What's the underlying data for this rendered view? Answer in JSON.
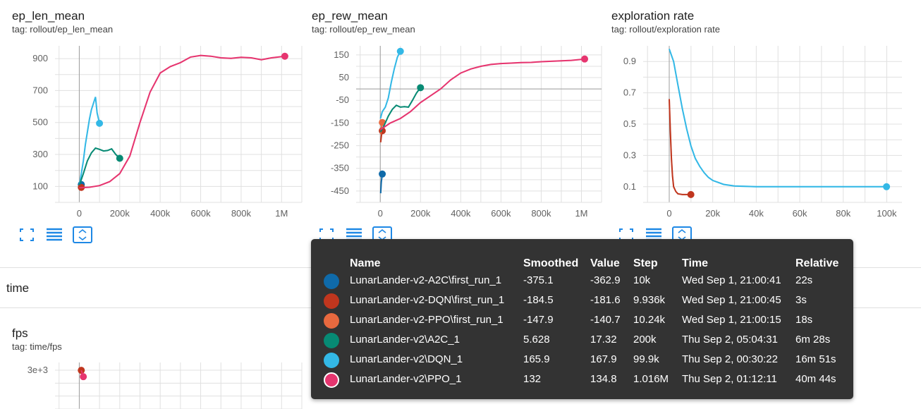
{
  "cards": [
    {
      "title": "ep_len_mean",
      "tag": "tag: rollout/ep_len_mean",
      "y_ticks": [
        "900",
        "700",
        "500",
        "300",
        "100"
      ],
      "x_ticks": [
        "0",
        "200k",
        "400k",
        "600k",
        "800k",
        "1M"
      ]
    },
    {
      "title": "ep_rew_mean",
      "tag": "tag: rollout/ep_rew_mean",
      "y_ticks": [
        "150",
        "50",
        "-50",
        "-150",
        "-250",
        "-350",
        "-450"
      ],
      "x_ticks": [
        "0",
        "200k",
        "400k",
        "600k",
        "800k",
        "1M"
      ]
    },
    {
      "title": "exploration rate",
      "tag": "tag: rollout/exploration rate",
      "y_ticks": [
        "0.9",
        "0.7",
        "0.5",
        "0.3",
        "0.1"
      ],
      "x_ticks": [
        "0",
        "20k",
        "40k",
        "60k",
        "80k",
        "100k"
      ]
    }
  ],
  "sections": {
    "time_label": "time",
    "fps_title": "fps",
    "fps_tag": "tag: time/fps",
    "fps_y_tick": "3e+3"
  },
  "toolbar_icons": [
    "fullscreen-icon",
    "toggle-log-scale-icon",
    "fit-domain-icon"
  ],
  "colors": {
    "A2C_first": "#0f6aa9",
    "DQN_first": "#c0361e",
    "PPO_first": "#e8693f",
    "A2C": "#078a74",
    "DQN": "#33b8e6",
    "PPO": "#e6356f",
    "accent": "#1e88e5"
  },
  "tooltip": {
    "headers": {
      "name": "Name",
      "smoothed": "Smoothed",
      "value": "Value",
      "step": "Step",
      "time": "Time",
      "relative": "Relative"
    },
    "rows": [
      {
        "name": "LunarLander-v2-A2C\\first_run_1",
        "smoothed": "-375.1",
        "value": "-362.9",
        "step": "10k",
        "time": "Wed Sep 1, 21:00:41",
        "relative": "22s",
        "color": "#0f6aa9"
      },
      {
        "name": "LunarLander-v2-DQN\\first_run_1",
        "smoothed": "-184.5",
        "value": "-181.6",
        "step": "9.936k",
        "time": "Wed Sep 1, 21:00:45",
        "relative": "3s",
        "color": "#c0361e"
      },
      {
        "name": "LunarLander-v2-PPO\\first_run_1",
        "smoothed": "-147.9",
        "value": "-140.7",
        "step": "10.24k",
        "time": "Wed Sep 1, 21:00:15",
        "relative": "18s",
        "color": "#e8693f"
      },
      {
        "name": "LunarLander-v2\\A2C_1",
        "smoothed": "5.628",
        "value": "17.32",
        "step": "200k",
        "time": "Thu Sep 2, 05:04:31",
        "relative": "6m 28s",
        "color": "#078a74"
      },
      {
        "name": "LunarLander-v2\\DQN_1",
        "smoothed": "165.9",
        "value": "167.9",
        "step": "99.9k",
        "time": "Thu Sep 2, 00:30:22",
        "relative": "16m 51s",
        "color": "#33b8e6"
      },
      {
        "name": "LunarLander-v2\\PPO_1",
        "smoothed": "132",
        "value": "134.8",
        "step": "1.016M",
        "time": "Thu Sep 2, 01:12:11",
        "relative": "40m 44s",
        "color": "#e6356f",
        "selected": true
      }
    ]
  },
  "chart_data": [
    {
      "type": "line",
      "title": "ep_len_mean",
      "xlim": [
        -120000,
        1100000
      ],
      "ylim": [
        0,
        980
      ],
      "series": [
        {
          "name": "LunarLander-v2-A2C\\first_run_1",
          "color": "#0f6aa9",
          "x": [
            2000,
            6000,
            10000
          ],
          "y": [
            100,
            106,
            112
          ]
        },
        {
          "name": "LunarLander-v2-DQN\\first_run_1",
          "color": "#c0361e",
          "x": [
            3000,
            9936
          ],
          "y": [
            97,
            94
          ]
        },
        {
          "name": "LunarLander-v2\\DQN_1",
          "color": "#33b8e6",
          "x": [
            1000,
            10000,
            20000,
            30000,
            40000,
            50000,
            60000,
            70000,
            80000,
            88000,
            99900
          ],
          "y": [
            110,
            180,
            260,
            360,
            440,
            520,
            580,
            620,
            660,
            560,
            495
          ]
        },
        {
          "name": "LunarLander-v2\\A2C_1",
          "color": "#078a74",
          "x": [
            1000,
            20000,
            40000,
            60000,
            80000,
            100000,
            120000,
            140000,
            160000,
            180000,
            200000
          ],
          "y": [
            110,
            180,
            260,
            310,
            340,
            332,
            322,
            325,
            335,
            300,
            276
          ]
        },
        {
          "name": "LunarLander-v2\\PPO_1",
          "color": "#e6356f",
          "x": [
            0,
            50000,
            100000,
            150000,
            200000,
            250000,
            300000,
            350000,
            400000,
            450000,
            500000,
            550000,
            600000,
            650000,
            700000,
            750000,
            800000,
            850000,
            900000,
            950000,
            1016000
          ],
          "y": [
            92,
            95,
            105,
            130,
            180,
            290,
            500,
            690,
            810,
            850,
            875,
            910,
            920,
            915,
            905,
            902,
            908,
            905,
            893,
            905,
            915
          ]
        }
      ]
    },
    {
      "type": "line",
      "title": "ep_rew_mean",
      "xlim": [
        -120000,
        1100000
      ],
      "ylim": [
        -500,
        190
      ],
      "series": [
        {
          "name": "LunarLander-v2-A2C\\first_run_1",
          "color": "#0f6aa9",
          "x": [
            2000,
            5000,
            10000
          ],
          "y": [
            -460,
            -410,
            -375
          ]
        },
        {
          "name": "LunarLander-v2-DQN\\first_run_1",
          "color": "#c0361e",
          "x": [
            2000,
            6000,
            9936
          ],
          "y": [
            -235,
            -205,
            -184.5
          ]
        },
        {
          "name": "LunarLander-v2-PPO\\first_run_1",
          "color": "#e8693f",
          "x": [
            2000,
            6000,
            10240
          ],
          "y": [
            -200,
            -170,
            -147.9
          ]
        },
        {
          "name": "LunarLander-v2\\DQN_1",
          "color": "#33b8e6",
          "x": [
            1000,
            10000,
            25000,
            40000,
            55000,
            70000,
            85000,
            99900
          ],
          "y": [
            -130,
            -100,
            -80,
            -40,
            30,
            90,
            140,
            165.9
          ]
        },
        {
          "name": "LunarLander-v2\\A2C_1",
          "color": "#078a74",
          "x": [
            1000,
            20000,
            40000,
            60000,
            80000,
            100000,
            120000,
            140000,
            160000,
            180000,
            200000
          ],
          "y": [
            -190,
            -160,
            -120,
            -90,
            -72,
            -80,
            -78,
            -80,
            -50,
            -18,
            5.628
          ]
        },
        {
          "name": "LunarLander-v2\\PPO_1",
          "color": "#e6356f",
          "x": [
            0,
            50000,
            100000,
            150000,
            200000,
            250000,
            300000,
            350000,
            400000,
            450000,
            500000,
            550000,
            600000,
            650000,
            700000,
            750000,
            800000,
            850000,
            900000,
            950000,
            1016000
          ],
          "y": [
            -180,
            -150,
            -130,
            -100,
            -60,
            -30,
            0,
            40,
            70,
            88,
            100,
            108,
            112,
            114,
            116,
            117,
            120,
            122,
            124,
            126,
            132
          ]
        }
      ]
    },
    {
      "type": "line",
      "title": "exploration rate",
      "xlim": [
        -12000,
        107000
      ],
      "ylim": [
        0,
        1.0
      ],
      "series": [
        {
          "name": "LunarLander-v2-DQN\\first_run_1",
          "color": "#c0361e",
          "x": [
            0,
            500,
            1000,
            1500,
            2000,
            3000,
            4000,
            6000,
            8000,
            9936
          ],
          "y": [
            0.66,
            0.45,
            0.28,
            0.17,
            0.1,
            0.07,
            0.055,
            0.05,
            0.05,
            0.05
          ]
        },
        {
          "name": "LunarLander-v2\\DQN_1",
          "color": "#33b8e6",
          "x": [
            0,
            2000,
            4000,
            6000,
            8000,
            10000,
            12000,
            14000,
            16000,
            18000,
            20000,
            25000,
            30000,
            40000,
            60000,
            80000,
            99900
          ],
          "y": [
            0.98,
            0.9,
            0.75,
            0.6,
            0.47,
            0.36,
            0.28,
            0.23,
            0.19,
            0.16,
            0.14,
            0.115,
            0.105,
            0.1,
            0.1,
            0.1,
            0.1
          ]
        }
      ]
    },
    {
      "type": "line",
      "title": "fps",
      "xlim": [
        -120000,
        1100000
      ],
      "ylim": [
        0,
        3600
      ],
      "series": [
        {
          "name": "LunarLander-v2-DQN\\first_run_1",
          "color": "#c0361e",
          "x": [
            9936
          ],
          "y": [
            2990
          ]
        },
        {
          "name": "LunarLander-v2\\PPO_1",
          "color": "#e6356f",
          "x": [
            9936,
            20000
          ],
          "y": [
            2990,
            2500
          ]
        }
      ]
    }
  ]
}
